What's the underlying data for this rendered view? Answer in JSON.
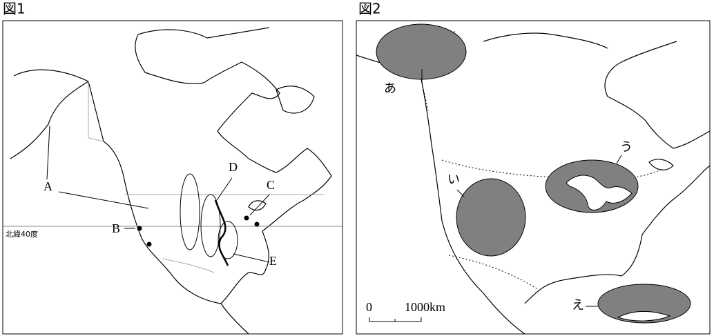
{
  "figure1": {
    "title": "図1",
    "latitude_label": "北緯40度",
    "labels": [
      "A",
      "B",
      "C",
      "D",
      "E"
    ]
  },
  "figure2": {
    "title": "図2",
    "labels": [
      "あ",
      "い",
      "う",
      "え"
    ],
    "scale": {
      "start": "0",
      "end": "1000km"
    }
  }
}
